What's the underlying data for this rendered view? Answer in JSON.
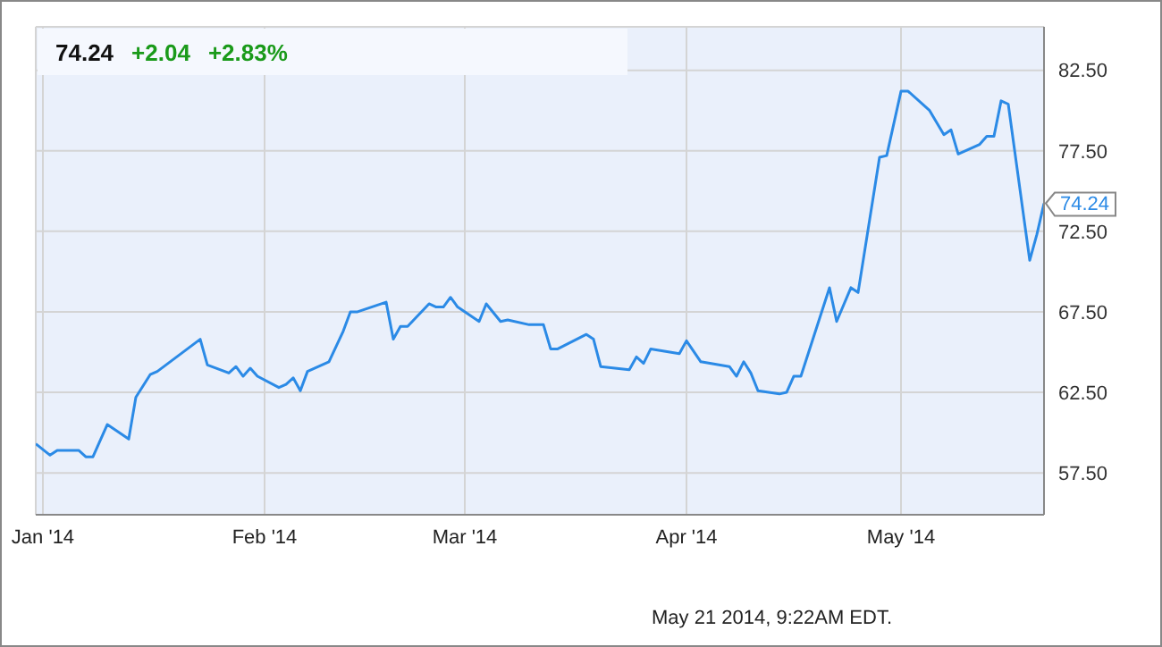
{
  "chart_data": {
    "type": "line",
    "title": "74.24",
    "annotations": [
      "+2.04",
      "+2.83%",
      "May 21 2014, 9:22AM EDT.",
      {
        "text": "74.24",
        "x": "2014-05-21",
        "y": 74.24
      }
    ],
    "x": [
      "2013-12-31",
      "2014-01-02",
      "2014-01-03",
      "2014-01-06",
      "2014-01-07",
      "2014-01-08",
      "2014-01-10",
      "2014-01-13",
      "2014-01-14",
      "2014-01-16",
      "2014-01-17",
      "2014-01-23",
      "2014-01-24",
      "2014-01-27",
      "2014-01-28",
      "2014-01-29",
      "2014-01-30",
      "2014-01-31",
      "2014-02-03",
      "2014-02-04",
      "2014-02-05",
      "2014-02-06",
      "2014-02-07",
      "2014-02-10",
      "2014-02-12",
      "2014-02-13",
      "2014-02-14",
      "2014-02-18",
      "2014-02-19",
      "2014-02-20",
      "2014-02-21",
      "2014-02-24",
      "2014-02-25",
      "2014-02-26",
      "2014-02-27",
      "2014-02-28",
      "2014-03-03",
      "2014-03-04",
      "2014-03-06",
      "2014-03-07",
      "2014-03-10",
      "2014-03-12",
      "2014-03-13",
      "2014-03-14",
      "2014-03-18",
      "2014-03-19",
      "2014-03-20",
      "2014-03-24",
      "2014-03-25",
      "2014-03-26",
      "2014-03-27",
      "2014-03-31",
      "2014-04-01",
      "2014-04-03",
      "2014-04-07",
      "2014-04-08",
      "2014-04-09",
      "2014-04-10",
      "2014-04-11",
      "2014-04-14",
      "2014-04-15",
      "2014-04-16",
      "2014-04-17",
      "2014-04-21",
      "2014-04-22",
      "2014-04-24",
      "2014-04-25",
      "2014-04-28",
      "2014-04-29",
      "2014-05-01",
      "2014-05-02",
      "2014-05-05",
      "2014-05-07",
      "2014-05-08",
      "2014-05-09",
      "2014-05-12",
      "2014-05-13",
      "2014-05-14",
      "2014-05-15",
      "2014-05-16",
      "2014-05-19",
      "2014-05-20",
      "2014-05-21"
    ],
    "series": [
      {
        "color": "#2b8ae6",
        "values": [
          59.3,
          58.6,
          58.9,
          58.9,
          58.5,
          58.5,
          60.5,
          59.6,
          62.2,
          63.6,
          63.8,
          65.8,
          64.2,
          63.7,
          64.1,
          63.5,
          64.0,
          63.5,
          62.8,
          63.0,
          63.4,
          62.6,
          63.8,
          64.4,
          66.3,
          67.5,
          67.5,
          68.1,
          65.8,
          66.6,
          66.6,
          68.0,
          67.8,
          67.8,
          68.4,
          67.8,
          66.9,
          68.0,
          66.9,
          67.0,
          66.7,
          66.7,
          65.2,
          65.2,
          66.1,
          65.8,
          64.1,
          63.9,
          64.7,
          64.3,
          65.2,
          64.9,
          65.7,
          64.4,
          64.1,
          63.5,
          64.4,
          63.7,
          62.6,
          62.4,
          62.5,
          63.5,
          63.5,
          69.0,
          66.9,
          69.0,
          68.7,
          77.1,
          77.2,
          81.2,
          81.2,
          80.0,
          78.5,
          78.8,
          77.3,
          77.9,
          78.4,
          78.4,
          80.6,
          80.4,
          70.7,
          72.3,
          74.24
        ]
      }
    ],
    "xlim": [
      "2013-12-31",
      "2014-05-21"
    ],
    "xticks": [
      {
        "value": "2014-01-01",
        "label": "Jan '14"
      },
      {
        "value": "2014-02-01",
        "label": "Feb '14"
      },
      {
        "value": "2014-03-01",
        "label": "Mar '14"
      },
      {
        "value": "2014-04-01",
        "label": "Apr '14"
      },
      {
        "value": "2014-05-01",
        "label": "May '14"
      }
    ],
    "ylim": [
      54.9,
      85.2
    ],
    "yticks": [
      {
        "value": 57.5,
        "label": "57.50"
      },
      {
        "value": 62.5,
        "label": "62.50"
      },
      {
        "value": 67.5,
        "label": "67.50"
      },
      {
        "value": 72.5,
        "label": "72.50"
      },
      {
        "value": 77.5,
        "label": "77.50"
      },
      {
        "value": 82.5,
        "label": "82.50"
      }
    ],
    "grid": true,
    "marker": "none",
    "line_style": "solid"
  }
}
